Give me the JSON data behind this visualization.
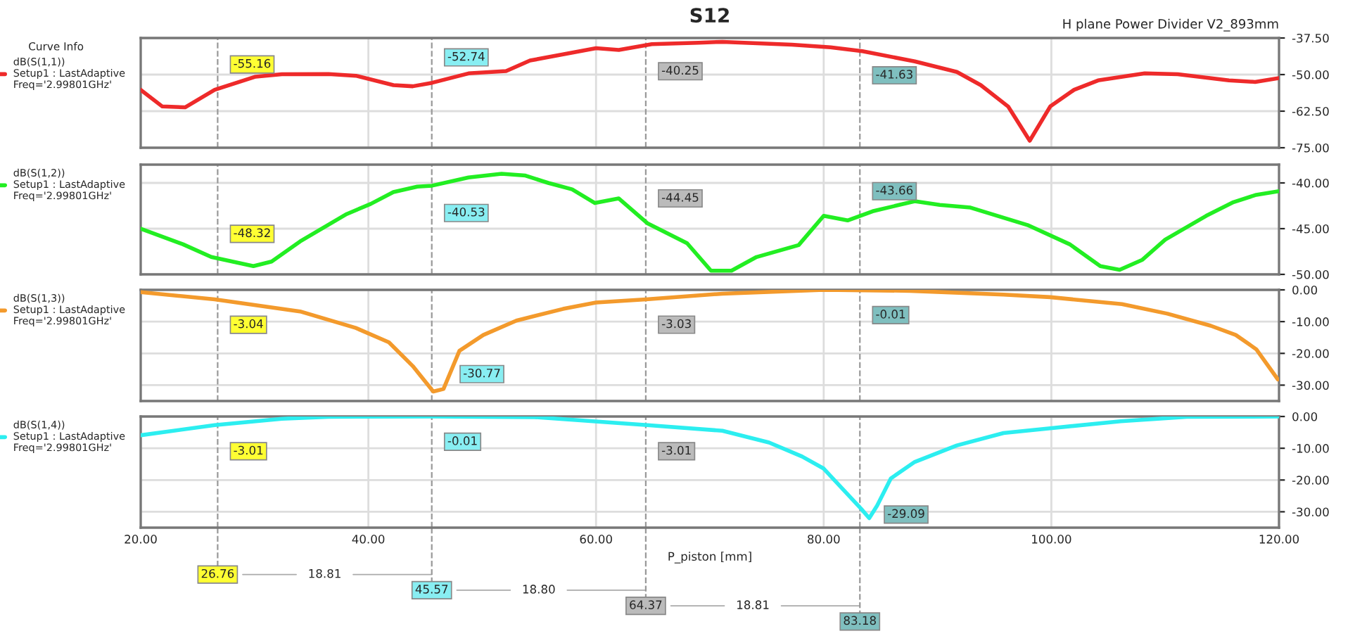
{
  "chart_data": [
    {
      "type": "line",
      "title": "S12",
      "subtitle": "H plane Power Divider V2_893mm",
      "legend_title": "Curve Info",
      "legend": "left",
      "grid": true,
      "tick_labels": "y",
      "line_style": "solid",
      "marker": "none",
      "xlim": [
        20,
        120
      ],
      "ylim": [
        -75,
        -37.5
      ],
      "yticks": [
        {
          "value": -75,
          "label": "-75.00"
        },
        {
          "value": -62.5,
          "label": "-62.50"
        },
        {
          "value": -50,
          "label": "-50.00"
        },
        {
          "value": -37.5,
          "label": "-37.50"
        }
      ],
      "series": [
        {
          "name": "dB(S(1,1))\nSetup1 : LastAdaptive\nFreq='2.99801GHz'",
          "color": "#ee2a2a",
          "x": [
            20,
            21.9,
            23.9,
            26.5,
            30.1,
            32.4,
            36.5,
            38.9,
            42.2,
            43.9,
            45.6,
            48.8,
            52.1,
            54.2,
            57.1,
            60.0,
            62.0,
            64.9,
            69.0,
            71.1,
            77.2,
            80.6,
            83.4,
            88.0,
            91.7,
            93.8,
            96.2,
            98.1,
            99.9,
            102.0,
            104.1,
            108.2,
            111.1,
            115.6,
            117.9,
            120
          ],
          "values": [
            -55.2,
            -60.9,
            -61.2,
            -55.2,
            -50.7,
            -49.9,
            -49.8,
            -50.4,
            -53.6,
            -54.0,
            -52.8,
            -49.6,
            -48.8,
            -45.2,
            -43.1,
            -41.0,
            -41.6,
            -39.6,
            -39.1,
            -38.8,
            -39.8,
            -40.7,
            -42.0,
            -45.5,
            -49.1,
            -53.6,
            -60.9,
            -72.6,
            -60.9,
            -55.2,
            -52.0,
            -49.6,
            -49.9,
            -52.0,
            -52.5,
            -51.2
          ]
        }
      ],
      "ref_lines": [
        {
          "axis": "x",
          "value": 26.76,
          "line_style": "dashed"
        },
        {
          "axis": "x",
          "value": 45.57,
          "line_style": "dashed"
        },
        {
          "axis": "x",
          "value": 64.37,
          "line_style": "dashed"
        },
        {
          "axis": "x",
          "value": 83.18,
          "line_style": "dashed"
        }
      ],
      "annotations": [
        {
          "text": "-55.16",
          "x": 26.76,
          "y": -55.16
        },
        {
          "text": "-52.74",
          "x": 45.57,
          "y": -52.74
        },
        {
          "text": "-40.25",
          "x": 64.37,
          "y": -40.25
        },
        {
          "text": "-41.63",
          "x": 83.18,
          "y": -41.63
        }
      ]
    },
    {
      "type": "line",
      "legend": "left",
      "grid": true,
      "tick_labels": "y",
      "line_style": "solid",
      "marker": "none",
      "xlim": [
        20,
        120
      ],
      "ylim": [
        -50,
        -38
      ],
      "yticks": [
        {
          "value": -50,
          "label": "-50.00"
        },
        {
          "value": -45,
          "label": "-45.00"
        },
        {
          "value": -40,
          "label": "-40.00"
        }
      ],
      "series": [
        {
          "name": "dB(S(1,2))\nSetup1 : LastAdaptive\nFreq='2.99801GHz'",
          "color": "#22ee22",
          "x": [
            20,
            23.7,
            26.2,
            29.9,
            31.5,
            34.0,
            38.1,
            40.2,
            42.2,
            44.3,
            45.6,
            48.8,
            51.7,
            53.8,
            55.8,
            57.9,
            59.9,
            62.0,
            64.5,
            68.0,
            70.1,
            71.9,
            74.1,
            77.8,
            80.0,
            82.1,
            84.3,
            88.0,
            90.2,
            92.9,
            97.9,
            101.6,
            104.3,
            106.0,
            108.0,
            110.0,
            113.6,
            116.0,
            118.0,
            120
          ],
          "values": [
            -45.0,
            -46.7,
            -48.1,
            -49.1,
            -48.6,
            -46.4,
            -43.4,
            -42.3,
            -41.0,
            -40.4,
            -40.3,
            -39.4,
            -39.0,
            -39.2,
            -40.0,
            -40.7,
            -42.2,
            -41.7,
            -44.4,
            -46.6,
            -49.6,
            -49.6,
            -48.1,
            -46.8,
            -43.6,
            -44.1,
            -43.1,
            -42.0,
            -42.4,
            -42.7,
            -44.6,
            -46.7,
            -49.1,
            -49.5,
            -48.4,
            -46.2,
            -43.6,
            -42.1,
            -41.3,
            -40.9
          ]
        }
      ],
      "ref_lines": [
        {
          "axis": "x",
          "value": 26.76,
          "line_style": "dashed"
        },
        {
          "axis": "x",
          "value": 45.57,
          "line_style": "dashed"
        },
        {
          "axis": "x",
          "value": 64.37,
          "line_style": "dashed"
        },
        {
          "axis": "x",
          "value": 83.18,
          "line_style": "dashed"
        }
      ],
      "annotations": [
        {
          "text": "-48.32",
          "x": 26.76,
          "y": -48.32
        },
        {
          "text": "-40.53",
          "x": 45.57,
          "y": -40.53
        },
        {
          "text": "-44.45",
          "x": 64.37,
          "y": -44.45
        },
        {
          "text": "-43.66",
          "x": 83.18,
          "y": -43.66
        }
      ]
    },
    {
      "type": "line",
      "legend": "left",
      "grid": true,
      "tick_labels": "y",
      "line_style": "solid",
      "marker": "none",
      "xlim": [
        20,
        120
      ],
      "ylim": [
        -35,
        0
      ],
      "yticks": [
        {
          "value": -30,
          "label": "-30.00"
        },
        {
          "value": -20,
          "label": "-20.00"
        },
        {
          "value": -10,
          "label": "-10.00"
        },
        {
          "value": 0,
          "label": "0.00"
        }
      ],
      "series": [
        {
          "name": "dB(S(1,3))\nSetup1 : LastAdaptive\nFreq='2.99801GHz'",
          "color": "#f39a2c",
          "x": [
            20,
            26.5,
            34.0,
            38.9,
            41.8,
            43.9,
            45.7,
            46.6,
            48.0,
            50.1,
            53.0,
            57.1,
            60.0,
            64.4,
            71.1,
            80.0,
            87.6,
            95.8,
            99.9,
            106.2,
            110.2,
            114.0,
            116.2,
            118.0,
            119.9
          ],
          "values": [
            -0.7,
            -3.0,
            -6.8,
            -12.0,
            -16.5,
            -24.0,
            -32.0,
            -31.2,
            -19.2,
            -14.2,
            -9.7,
            -6.0,
            -4.0,
            -3.0,
            -1.2,
            0,
            -0.3,
            -1.5,
            -2.3,
            -4.5,
            -7.5,
            -11.3,
            -14.2,
            -18.7,
            -28.2
          ]
        }
      ],
      "ref_lines": [
        {
          "axis": "x",
          "value": 26.76,
          "line_style": "dashed"
        },
        {
          "axis": "x",
          "value": 45.57,
          "line_style": "dashed"
        },
        {
          "axis": "x",
          "value": 64.37,
          "line_style": "dashed"
        },
        {
          "axis": "x",
          "value": 83.18,
          "line_style": "dashed"
        }
      ],
      "annotations": [
        {
          "text": "-3.04",
          "x": 26.76,
          "y": -3.04
        },
        {
          "text": "-30.77",
          "x": 45.57,
          "y": -30.77
        },
        {
          "text": "-3.03",
          "x": 64.37,
          "y": -3.03
        },
        {
          "text": "-0.01",
          "x": 83.18,
          "y": -0.01
        }
      ]
    },
    {
      "type": "line",
      "legend": "left",
      "grid": true,
      "line_style": "solid",
      "marker": "none",
      "xlabel": "P_piston [mm]",
      "xlim": [
        20,
        120
      ],
      "ylim": [
        -35,
        0
      ],
      "xticks": [
        {
          "value": 20,
          "label": "20.00"
        },
        {
          "value": 40,
          "label": "40.00"
        },
        {
          "value": 60,
          "label": "60.00"
        },
        {
          "value": 80,
          "label": "80.00"
        },
        {
          "value": 100,
          "label": "100.00"
        },
        {
          "value": 120,
          "label": "120.00"
        }
      ],
      "yticks": [
        {
          "value": -30,
          "label": "-30.00"
        },
        {
          "value": -20,
          "label": "-20.00"
        },
        {
          "value": -10,
          "label": "-10.00"
        },
        {
          "value": 0,
          "label": "0.00"
        }
      ],
      "series": [
        {
          "name": "dB(S(1,4))\nSetup1 : LastAdaptive\nFreq='2.99801GHz'",
          "color": "#2ceef0",
          "x": [
            20,
            26.5,
            32.4,
            36.5,
            45.6,
            54.6,
            64.5,
            71.1,
            75.2,
            78.1,
            80.0,
            83.3,
            84.0,
            84.7,
            85.9,
            88.0,
            91.7,
            95.8,
            99.9,
            106.1,
            111.9,
            120
          ],
          "values": [
            -5.9,
            -2.7,
            -0.7,
            -0.1,
            0,
            -0.2,
            -2.7,
            -4.5,
            -8.2,
            -12.6,
            -16.4,
            -29.1,
            -32.0,
            -28.0,
            -19.5,
            -14.3,
            -9.1,
            -5.2,
            -3.7,
            -1.5,
            -0.1,
            0
          ]
        }
      ],
      "ref_lines": [
        {
          "axis": "x",
          "value": 26.76,
          "label": "26.76",
          "line_style": "dashed"
        },
        {
          "axis": "x",
          "value": 45.57,
          "label": "45.57",
          "line_style": "dashed"
        },
        {
          "axis": "x",
          "value": 64.37,
          "label": "64.37",
          "line_style": "dashed"
        },
        {
          "axis": "x",
          "value": 83.18,
          "label": "83.18",
          "line_style": "dashed"
        }
      ],
      "annotations": [
        {
          "text": "-3.01",
          "x": 26.76,
          "y": -3.01
        },
        {
          "text": "-0.01",
          "x": 45.57,
          "y": -0.01
        },
        {
          "text": "-3.01",
          "x": 64.37,
          "y": -3.01
        },
        {
          "text": "-29.09",
          "x": 83.18,
          "y": -29.09
        },
        "18.81",
        "18.80",
        "18.81"
      ]
    }
  ]
}
